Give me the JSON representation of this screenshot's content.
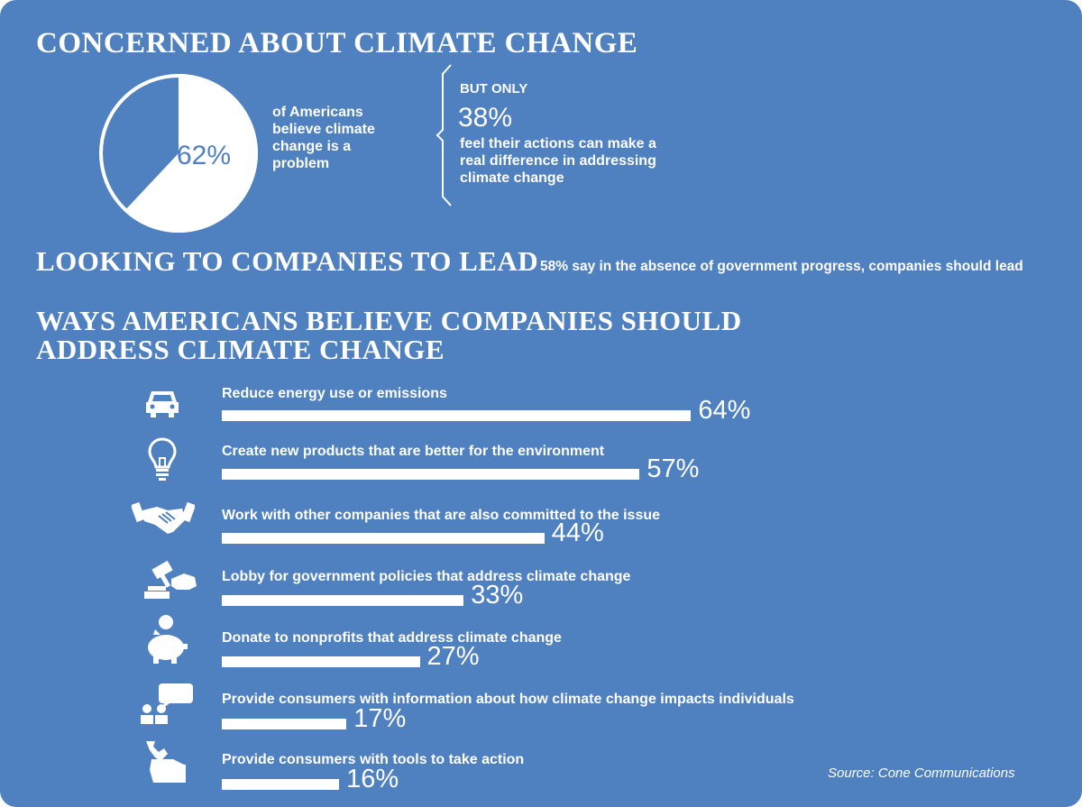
{
  "colors": {
    "background": "#4f80bf",
    "foreground": "#ffffff"
  },
  "section1": {
    "title": "CONCERNED ABOUT CLIMATE CHANGE",
    "pie_percent_label": "62%",
    "pie_value": 62,
    "pie_caption": "of Americans believe climate change is a problem",
    "but_only": "BUT ONLY",
    "big_percent": "38%",
    "caption": "feel their actions can make a real difference in addressing climate change"
  },
  "section2": {
    "title": "LOOKING TO COMPANIES TO LEAD",
    "note": "58% say in the absence of government progress, companies should lead"
  },
  "section3": {
    "title_line1": "WAYS AMERICANS BELIEVE COMPANIES SHOULD",
    "title_line2": "ADDRESS CLIMATE CHANGE"
  },
  "chart_data": {
    "type": "bar",
    "orientation": "horizontal",
    "categories": [
      "Reduce energy use or emissions",
      "Create new products that are better for the environment",
      "Work with other companies that are also committed to the issue",
      "Lobby for government policies that address climate change",
      "Donate to nonprofits that address climate change",
      "Provide consumers with information about how climate change impacts individuals",
      "Provide consumers with tools to take action"
    ],
    "values": [
      64,
      57,
      44,
      33,
      27,
      17,
      16
    ],
    "value_labels": [
      "64%",
      "57%",
      "44%",
      "33%",
      "27%",
      "17%",
      "16%"
    ],
    "icons": [
      "car-icon",
      "lightbulb-icon",
      "handshake-icon",
      "gavel-icon",
      "piggy-bank-icon",
      "chat-people-icon",
      "hand-wrench-icon"
    ],
    "xlim": [
      0,
      100
    ],
    "grid": false,
    "legend": "none"
  },
  "source": "Source: Cone Communications"
}
